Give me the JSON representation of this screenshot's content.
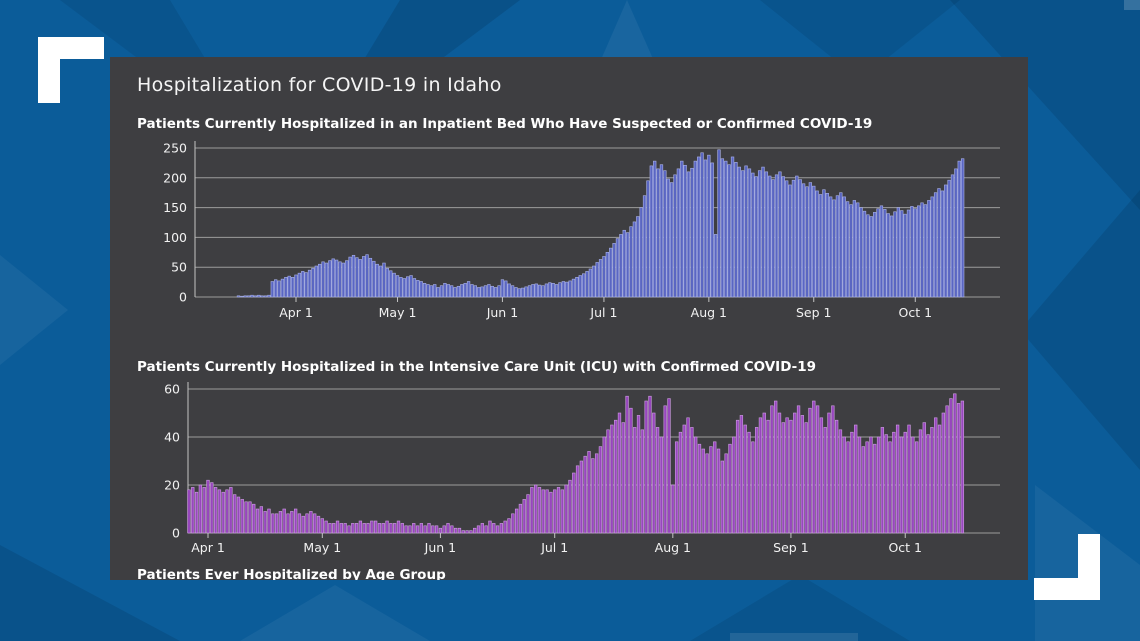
{
  "page": {
    "title": "Hospitalization for COVID-19 in Idaho"
  },
  "colors": {
    "background_blue": "#0b5c99",
    "background_shape_dark": "#084e84",
    "background_shape_light": "#0f6cab",
    "panel_gray": "#3e3e41",
    "grid_line": "#9c9c9c",
    "axis_line": "#c4c4c4",
    "tick_text": "#f2f2f2",
    "bracket_white": "#ffffff",
    "inpatient_bar": "#5a66c2",
    "inpatient_bar_edge": "#aab2e8",
    "icu_bar": "#9747bd",
    "icu_bar_edge": "#cf9fe3"
  },
  "partial_chart_title": "Patients Ever Hospitalized by Age Group",
  "chart_data": [
    {
      "type": "bar",
      "title": "Patients Currently Hospitalized in an Inpatient Bed Who Have Suspected or Confirmed COVID-19",
      "xlabel": "",
      "ylabel": "",
      "ylim": [
        0,
        250
      ],
      "yticks": [
        0,
        50,
        100,
        150,
        200,
        250
      ],
      "grid": true,
      "legend": "none",
      "start_date": "Mar 15",
      "end_date": "Oct 15",
      "xticks": [
        {
          "label": "Apr 1",
          "index": 17
        },
        {
          "label": "May 1",
          "index": 47
        },
        {
          "label": "Jun 1",
          "index": 78
        },
        {
          "label": "Jul 1",
          "index": 108
        },
        {
          "label": "Aug 1",
          "index": 139
        },
        {
          "label": "Sep 1",
          "index": 170
        },
        {
          "label": "Oct 1",
          "index": 200
        }
      ],
      "bar_color": "#5a66c2",
      "bar_edge_color": "#aab2e8",
      "values": [
        2,
        1,
        2,
        2,
        3,
        2,
        3,
        2,
        2,
        3,
        26,
        29,
        27,
        30,
        33,
        35,
        33,
        37,
        40,
        43,
        41,
        45,
        48,
        52,
        55,
        59,
        57,
        61,
        64,
        62,
        59,
        57,
        61,
        67,
        70,
        66,
        63,
        68,
        71,
        65,
        60,
        55,
        52,
        57,
        48,
        44,
        40,
        36,
        33,
        31,
        34,
        36,
        31,
        28,
        26,
        23,
        21,
        19,
        21,
        16,
        19,
        23,
        21,
        19,
        16,
        18,
        21,
        23,
        26,
        21,
        19,
        16,
        17,
        19,
        21,
        18,
        16,
        19,
        29,
        27,
        22,
        19,
        16,
        14,
        15,
        17,
        19,
        21,
        22,
        20,
        19,
        22,
        24,
        23,
        21,
        24,
        26,
        25,
        27,
        30,
        33,
        36,
        39,
        43,
        47,
        52,
        58,
        63,
        68,
        75,
        82,
        90,
        98,
        105,
        112,
        108,
        118,
        126,
        135,
        150,
        170,
        195,
        220,
        228,
        215,
        222,
        212,
        198,
        192,
        205,
        215,
        228,
        221,
        210,
        216,
        228,
        235,
        242,
        230,
        238,
        225,
        105,
        247,
        232,
        228,
        222,
        235,
        226,
        218,
        212,
        220,
        215,
        208,
        202,
        212,
        218,
        210,
        203,
        197,
        205,
        210,
        202,
        195,
        188,
        196,
        203,
        197,
        190,
        185,
        192,
        186,
        178,
        172,
        180,
        174,
        168,
        163,
        170,
        175,
        168,
        160,
        155,
        162,
        158,
        150,
        144,
        138,
        135,
        142,
        148,
        153,
        147,
        140,
        136,
        143,
        150,
        145,
        139,
        146,
        152,
        148,
        153,
        158,
        155,
        162,
        168,
        175,
        182,
        178,
        188,
        196,
        205,
        215,
        228,
        232
      ]
    },
    {
      "type": "bar",
      "title": "Patients Currently Hospitalized in the Intensive Care Unit (ICU) with Confirmed COVID-19",
      "xlabel": "",
      "ylabel": "",
      "ylim": [
        0,
        60
      ],
      "yticks": [
        0,
        20,
        40,
        60
      ],
      "grid": true,
      "legend": "none",
      "start_date": "Mar 27",
      "end_date": "Oct 16",
      "xticks": [
        {
          "label": "Apr 1",
          "index": 5
        },
        {
          "label": "May 1",
          "index": 35
        },
        {
          "label": "Jun 1",
          "index": 66
        },
        {
          "label": "Jul 1",
          "index": 96
        },
        {
          "label": "Aug 1",
          "index": 127
        },
        {
          "label": "Sep 1",
          "index": 158
        },
        {
          "label": "Oct 1",
          "index": 188
        }
      ],
      "bar_color": "#9747bd",
      "bar_edge_color": "#cf9fe3",
      "values": [
        18,
        19,
        17,
        20,
        19,
        22,
        21,
        19,
        18,
        17,
        18,
        19,
        16,
        15,
        14,
        13,
        13,
        12,
        10,
        11,
        9,
        10,
        8,
        8,
        9,
        10,
        8,
        9,
        10,
        8,
        7,
        8,
        9,
        8,
        7,
        6,
        5,
        4,
        4,
        5,
        4,
        4,
        3,
        4,
        4,
        5,
        4,
        4,
        5,
        5,
        4,
        4,
        5,
        4,
        4,
        5,
        4,
        3,
        3,
        4,
        3,
        4,
        3,
        4,
        3,
        3,
        2,
        3,
        4,
        3,
        2,
        2,
        1,
        1,
        1,
        2,
        3,
        4,
        3,
        5,
        4,
        3,
        4,
        5,
        6,
        8,
        10,
        12,
        14,
        16,
        19,
        20,
        19,
        18,
        18,
        17,
        18,
        19,
        18,
        20,
        22,
        25,
        28,
        30,
        32,
        34,
        31,
        33,
        36,
        40,
        43,
        45,
        47,
        50,
        46,
        57,
        52,
        44,
        49,
        43,
        55,
        57,
        50,
        44,
        40,
        53,
        56,
        20,
        38,
        42,
        45,
        48,
        44,
        40,
        37,
        35,
        33,
        36,
        38,
        35,
        30,
        33,
        37,
        40,
        47,
        49,
        45,
        42,
        38,
        44,
        48,
        50,
        47,
        53,
        55,
        50,
        46,
        48,
        47,
        50,
        53,
        49,
        46,
        52,
        55,
        53,
        48,
        44,
        50,
        53,
        47,
        43,
        40,
        38,
        42,
        45,
        40,
        36,
        38,
        40,
        37,
        40,
        44,
        41,
        38,
        42,
        45,
        40,
        42,
        45,
        40,
        38,
        43,
        46,
        41,
        44,
        48,
        45,
        50,
        53,
        56,
        58,
        54,
        55
      ]
    }
  ]
}
